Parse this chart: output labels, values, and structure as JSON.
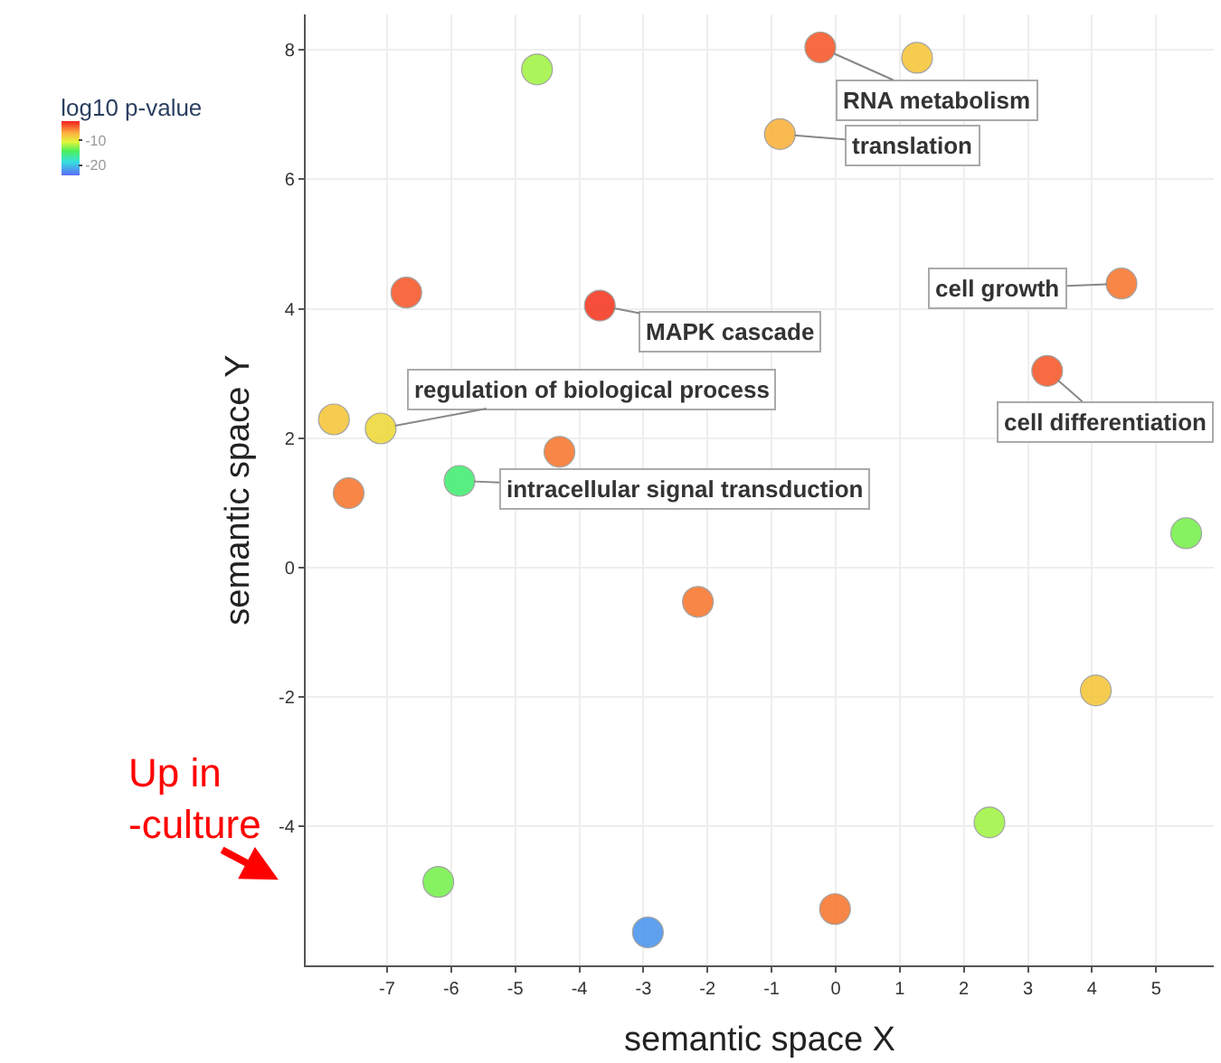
{
  "chart_data": {
    "type": "scatter",
    "xlabel": "semantic space X",
    "ylabel": "semantic space Y",
    "clabel": "log10 p-value",
    "x": [
      -0.24,
      1.27,
      -4.66,
      -0.87,
      4.46,
      -6.7,
      -3.68,
      3.3,
      -7.83,
      -7.1,
      -4.31,
      -7.6,
      -5.87,
      5.47,
      -2.15,
      4.06,
      2.4,
      -6.2,
      -0.01,
      -2.93
    ],
    "values": [
      8.04,
      7.88,
      7.7,
      6.7,
      4.39,
      4.25,
      4.05,
      3.04,
      2.29,
      2.15,
      1.79,
      1.15,
      1.34,
      0.53,
      -0.53,
      -1.9,
      -3.94,
      -4.86,
      -5.28,
      -5.64
    ],
    "cvalues": [
      -4,
      -8,
      -12,
      -7,
      -5,
      -4,
      -3,
      -4,
      -8,
      -9,
      -5,
      -5,
      -15,
      -13,
      -5,
      -8,
      -12,
      -13,
      -5,
      -22
    ],
    "clim": [
      -24,
      -2
    ],
    "cticks": [
      -10,
      -20
    ],
    "xlim": [
      -8.27,
      5.9
    ],
    "ylim": [
      -6.15,
      8.55
    ],
    "xticks": [
      -7,
      -6,
      -5,
      -4,
      -3,
      -2,
      -1,
      0,
      1,
      2,
      3,
      4,
      5
    ],
    "yticks": [
      -4,
      -2,
      0,
      2,
      4,
      6,
      8
    ],
    "grid": true,
    "marker": "circle",
    "annotations": [
      {
        "text": "RNA metabolism",
        "x": -0.24,
        "y": 8.04
      },
      {
        "text": "translation",
        "x": -0.87,
        "y": 6.7
      },
      {
        "text": "cell growth",
        "x": 4.46,
        "y": 4.39
      },
      {
        "text": "MAPK cascade",
        "x": -3.68,
        "y": 4.05
      },
      {
        "text": "cell differentiation",
        "x": 3.3,
        "y": 3.04
      },
      {
        "text": "regulation of biological process",
        "x": -7.1,
        "y": 2.15
      },
      {
        "text": "intracellular signal transduction",
        "x": -5.87,
        "y": 1.34
      },
      "Up in\n-culture"
    ]
  }
}
